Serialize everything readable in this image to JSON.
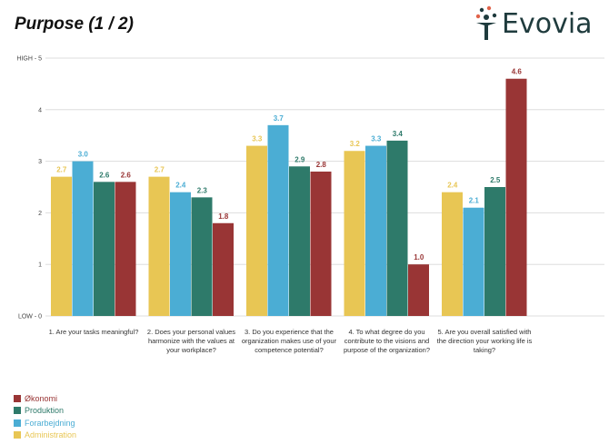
{
  "title": "Purpose (1 / 2)",
  "logo_text": "Evovia",
  "chart_data": {
    "type": "bar",
    "title": "Purpose (1 / 2)",
    "ylim": [
      0,
      5
    ],
    "yticks": [
      {
        "value": 0,
        "label": "LOW - 0"
      },
      {
        "value": 1,
        "label": "1"
      },
      {
        "value": 2,
        "label": "2"
      },
      {
        "value": 3,
        "label": "3"
      },
      {
        "value": 4,
        "label": "4"
      },
      {
        "value": 5,
        "label": "HIGH - 5"
      }
    ],
    "grid": true,
    "legend_placement": "bottom-left",
    "categories": [
      "1. Are your tasks meaningful?",
      "2. Does your personal values harmonize with the values at your workplace?",
      "3. Do you experience that the organization makes use of your competence potential?",
      "4. To what degree do you contribute to the visions and purpose of the organization?",
      "5. Are you overall satisfied with the direction your working life is taking?"
    ],
    "series": [
      {
        "name": "Administration",
        "color": "#e8c654",
        "values": [
          2.7,
          2.7,
          3.3,
          3.2,
          2.4
        ]
      },
      {
        "name": "Forarbejdning",
        "color": "#4badd4",
        "values": [
          3.0,
          2.4,
          3.7,
          3.3,
          2.1
        ]
      },
      {
        "name": "Produktion",
        "color": "#2e7a6a",
        "values": [
          2.6,
          2.3,
          2.9,
          3.4,
          2.5
        ]
      },
      {
        "name": "Økonomi",
        "color": "#993535",
        "values": [
          2.6,
          1.8,
          2.8,
          1.0,
          4.6
        ]
      }
    ],
    "legend_order": [
      3,
      2,
      1,
      0
    ]
  }
}
